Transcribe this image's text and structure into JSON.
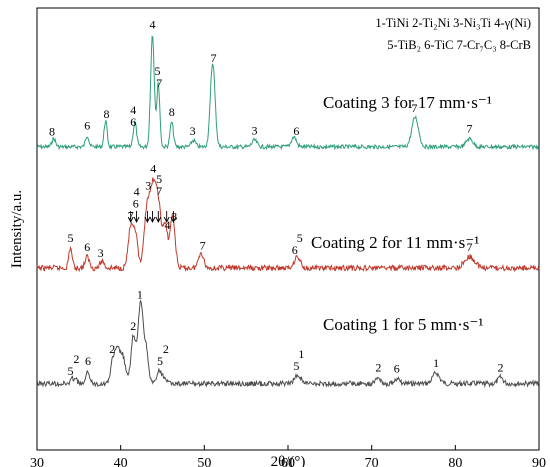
{
  "chart_data": {
    "type": "line",
    "xlabel": "2θ/(°)",
    "ylabel": "Intensity/a.u.",
    "xlim": [
      30,
      90
    ],
    "xticks": [
      "30",
      "40",
      "50",
      "60",
      "70",
      "80",
      "90"
    ],
    "grid": false,
    "legend_position": "top-right",
    "legend_lines": [
      "1-TiNi  2-Ti₂Ni  3-Ni₃Ti  4-γ(Ni)",
      "5-TiB₂  6-TiC  7-Cr₇C₃  8-CrB"
    ],
    "series": [
      {
        "name": "Coating 3 for 17 mm·s⁻¹",
        "color": "#2e9e78",
        "baseline": 0.55,
        "peaks": [
          {
            "x": 32.0,
            "h": 0.25,
            "w": 0.22
          },
          {
            "x": 36.0,
            "h": 0.35,
            "w": 0.2
          },
          {
            "x": 38.2,
            "h": 0.8,
            "w": 0.18
          },
          {
            "x": 41.7,
            "h": 0.75,
            "w": 0.2
          },
          {
            "x": 43.8,
            "h": 3.4,
            "w": 0.22
          },
          {
            "x": 44.5,
            "h": 1.9,
            "w": 0.18
          },
          {
            "x": 46.1,
            "h": 0.75,
            "w": 0.2
          },
          {
            "x": 48.7,
            "h": 0.2,
            "w": 0.25
          },
          {
            "x": 51.0,
            "h": 2.55,
            "w": 0.28
          },
          {
            "x": 56.0,
            "h": 0.2,
            "w": 0.3
          },
          {
            "x": 60.7,
            "h": 0.3,
            "w": 0.3
          },
          {
            "x": 75.2,
            "h": 0.9,
            "w": 0.4
          },
          {
            "x": 81.7,
            "h": 0.25,
            "w": 0.4
          }
        ],
        "peak_labels": [
          {
            "x": 31.8,
            "text": "8"
          },
          {
            "x": 36.0,
            "text": "6"
          },
          {
            "x": 38.3,
            "text": "8"
          },
          {
            "x": 41.5,
            "text": "6"
          },
          {
            "x": 41.5,
            "text": "4"
          },
          {
            "x": 43.8,
            "text": "4"
          },
          {
            "x": 44.6,
            "text": "7"
          },
          {
            "x": 44.4,
            "text": "5"
          },
          {
            "x": 46.1,
            "text": "8"
          },
          {
            "x": 48.6,
            "text": "3"
          },
          {
            "x": 51.1,
            "text": "7"
          },
          {
            "x": 56.0,
            "text": "3"
          },
          {
            "x": 61.0,
            "text": "6"
          },
          {
            "x": 75.1,
            "text": "7"
          },
          {
            "x": 81.7,
            "text": "7"
          }
        ]
      },
      {
        "name": "Coating 2 for 11 mm·s⁻¹",
        "color": "#c0392b",
        "baseline": 0.0,
        "peaks": [
          {
            "x": 34.0,
            "h": 0.45,
            "w": 0.2
          },
          {
            "x": 36.0,
            "h": 0.25,
            "w": 0.25
          },
          {
            "x": 37.8,
            "h": 0.15,
            "w": 0.25
          },
          {
            "x": 41.2,
            "h": 0.9,
            "w": 0.3
          },
          {
            "x": 41.8,
            "h": 0.7,
            "w": 0.25
          },
          {
            "x": 43.2,
            "h": 1.45,
            "w": 0.35
          },
          {
            "x": 43.9,
            "h": 1.6,
            "w": 0.3
          },
          {
            "x": 44.5,
            "h": 1.4,
            "w": 0.3
          },
          {
            "x": 45.3,
            "h": 0.95,
            "w": 0.3
          },
          {
            "x": 46.2,
            "h": 1.15,
            "w": 0.3
          },
          {
            "x": 49.6,
            "h": 0.35,
            "w": 0.3
          },
          {
            "x": 60.9,
            "h": 0.15,
            "w": 0.3
          },
          {
            "x": 61.3,
            "h": 0.15,
            "w": 0.3
          },
          {
            "x": 81.7,
            "h": 0.25,
            "w": 0.6
          }
        ],
        "peak_labels": [
          {
            "x": 34.0,
            "text": "5"
          },
          {
            "x": 36.0,
            "text": "6"
          },
          {
            "x": 37.6,
            "text": "3"
          },
          {
            "x": 41.2,
            "text": "7"
          },
          {
            "x": 41.8,
            "text": "6"
          },
          {
            "x": 41.9,
            "text": "4"
          },
          {
            "x": 43.3,
            "text": "3"
          },
          {
            "x": 43.9,
            "text": "4"
          },
          {
            "x": 44.6,
            "text": "7"
          },
          {
            "x": 44.6,
            "text": "5"
          },
          {
            "x": 45.6,
            "text": "4"
          },
          {
            "x": 46.4,
            "text": "3"
          },
          {
            "x": 49.8,
            "text": "7"
          },
          {
            "x": 60.8,
            "text": "6"
          },
          {
            "x": 61.4,
            "text": "5"
          },
          {
            "x": 81.7,
            "text": "7"
          }
        ]
      },
      {
        "name": "Coating 1 for 5 mm·s⁻¹",
        "color": "#4d4d4d",
        "baseline": -0.3,
        "peaks": [
          {
            "x": 34.2,
            "h": 0.1,
            "w": 0.2
          },
          {
            "x": 34.6,
            "h": 0.1,
            "w": 0.2
          },
          {
            "x": 36.1,
            "h": 0.3,
            "w": 0.2
          },
          {
            "x": 39.0,
            "h": 0.4,
            "w": 0.25
          },
          {
            "x": 39.6,
            "h": 0.8,
            "w": 0.35
          },
          {
            "x": 40.3,
            "h": 0.55,
            "w": 0.3
          },
          {
            "x": 41.5,
            "h": 1.1,
            "w": 0.28
          },
          {
            "x": 42.4,
            "h": 1.95,
            "w": 0.32
          },
          {
            "x": 43.1,
            "h": 0.7,
            "w": 0.25
          },
          {
            "x": 44.6,
            "h": 0.3,
            "w": 0.25
          },
          {
            "x": 45.2,
            "h": 0.15,
            "w": 0.25
          },
          {
            "x": 61.2,
            "h": 0.2,
            "w": 0.4
          },
          {
            "x": 70.8,
            "h": 0.15,
            "w": 0.3
          },
          {
            "x": 73.0,
            "h": 0.12,
            "w": 0.3
          },
          {
            "x": 77.7,
            "h": 0.25,
            "w": 0.4
          },
          {
            "x": 85.4,
            "h": 0.15,
            "w": 0.3
          }
        ],
        "peak_labels": [
          {
            "x": 34.0,
            "text": "5"
          },
          {
            "x": 34.7,
            "text": "2"
          },
          {
            "x": 36.1,
            "text": "6"
          },
          {
            "x": 39.0,
            "text": "2"
          },
          {
            "x": 41.5,
            "text": "2"
          },
          {
            "x": 42.3,
            "text": "1"
          },
          {
            "x": 44.7,
            "text": "5"
          },
          {
            "x": 45.4,
            "text": "2"
          },
          {
            "x": 61.0,
            "text": "5"
          },
          {
            "x": 61.6,
            "text": "1"
          },
          {
            "x": 70.8,
            "text": "2"
          },
          {
            "x": 73.0,
            "text": "6"
          },
          {
            "x": 77.7,
            "text": "1"
          },
          {
            "x": 85.4,
            "text": "2"
          }
        ]
      }
    ]
  }
}
